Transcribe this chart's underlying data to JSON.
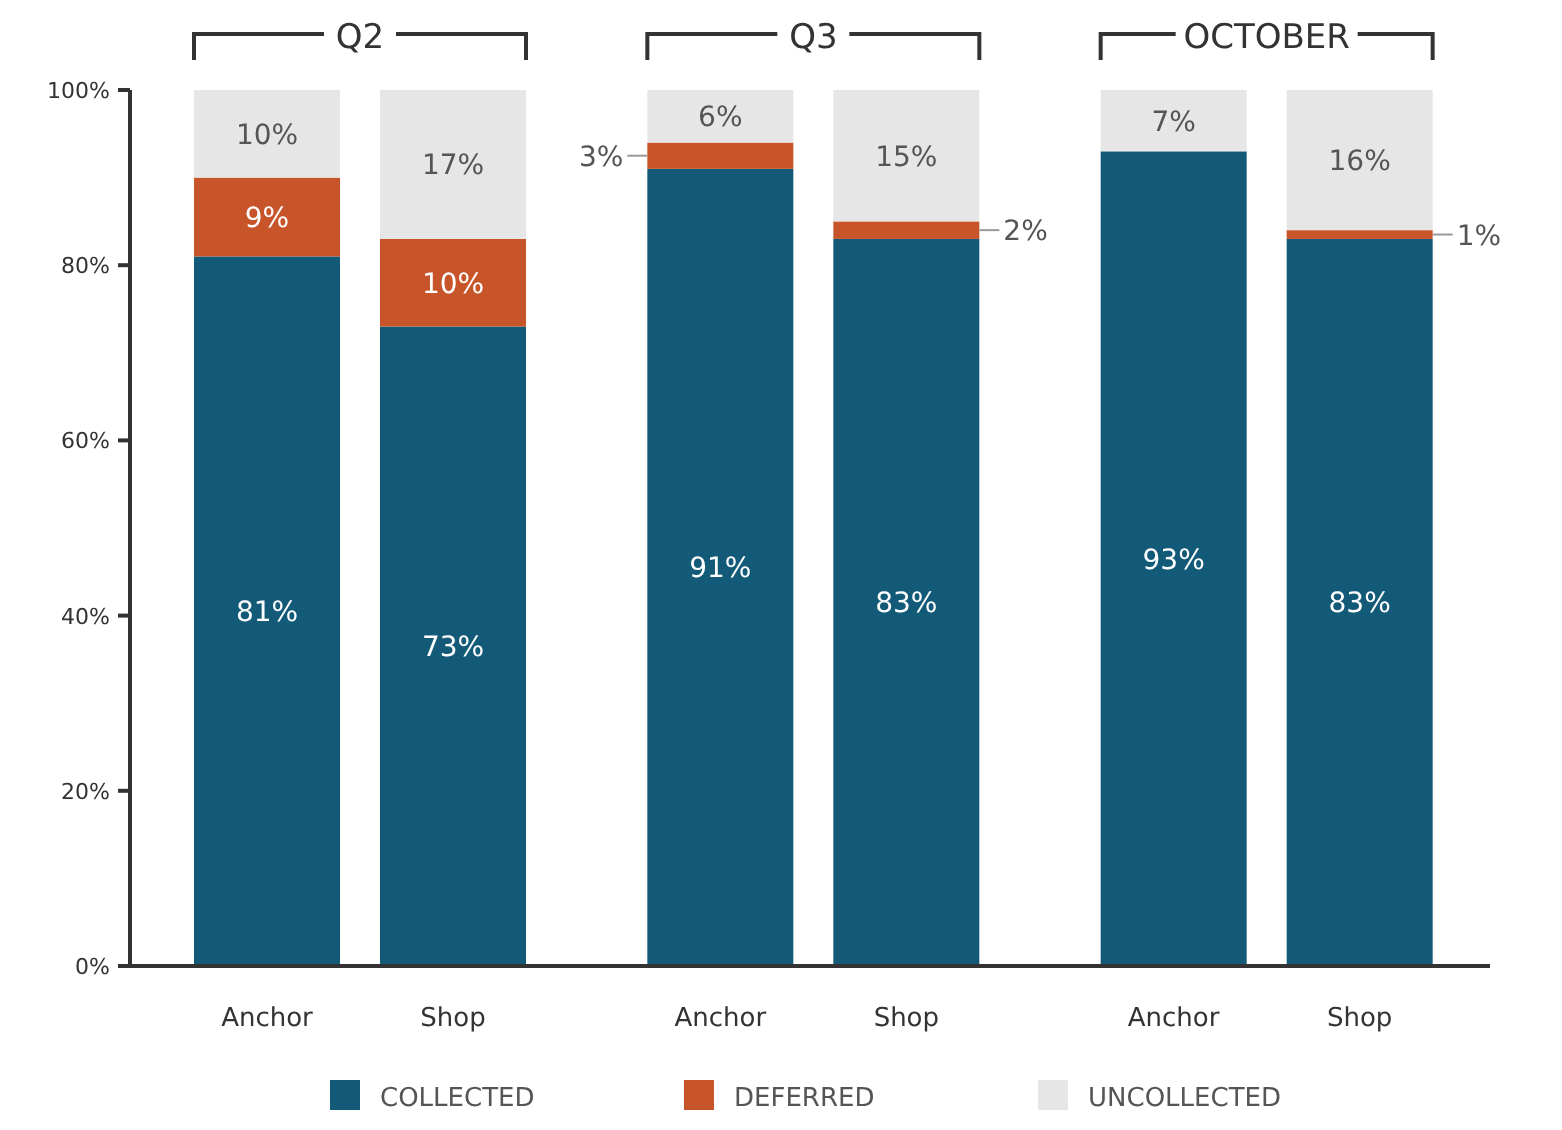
{
  "chart_data": {
    "type": "bar",
    "stacked": true,
    "categories": [
      "Anchor",
      "Shop",
      "Anchor",
      "Shop",
      "Anchor",
      "Shop"
    ],
    "series": [
      {
        "name": "COLLECTED",
        "color": "#135a78",
        "values": [
          81,
          73,
          91,
          83,
          93,
          83
        ],
        "value_labels": [
          "81%",
          "73%",
          "91%",
          "83%",
          "93%",
          "83%"
        ]
      },
      {
        "name": "DEFERRED",
        "color": "#c8552a",
        "values": [
          9,
          10,
          3,
          2,
          0,
          1
        ],
        "value_labels": [
          "9%",
          "10%",
          "3%",
          "2%",
          null,
          "1%"
        ]
      },
      {
        "name": "UNCOLLECTED",
        "color": "#e6e6e6",
        "values": [
          10,
          17,
          6,
          15,
          7,
          16
        ],
        "value_labels": [
          "10%",
          "17%",
          "6%",
          "15%",
          "7%",
          "16%"
        ]
      }
    ],
    "ylim": [
      0,
      100
    ],
    "yticks": [
      {
        "value": 0,
        "label": "0%"
      },
      {
        "value": 20,
        "label": "20%"
      },
      {
        "value": 40,
        "label": "40%"
      },
      {
        "value": 60,
        "label": "60%"
      },
      {
        "value": 80,
        "label": "80%"
      },
      {
        "value": 100,
        "label": "100%"
      }
    ],
    "grid": false,
    "legend": "bottom",
    "annotations": [
      "Q2",
      "Q3",
      "OCTOBER"
    ]
  }
}
